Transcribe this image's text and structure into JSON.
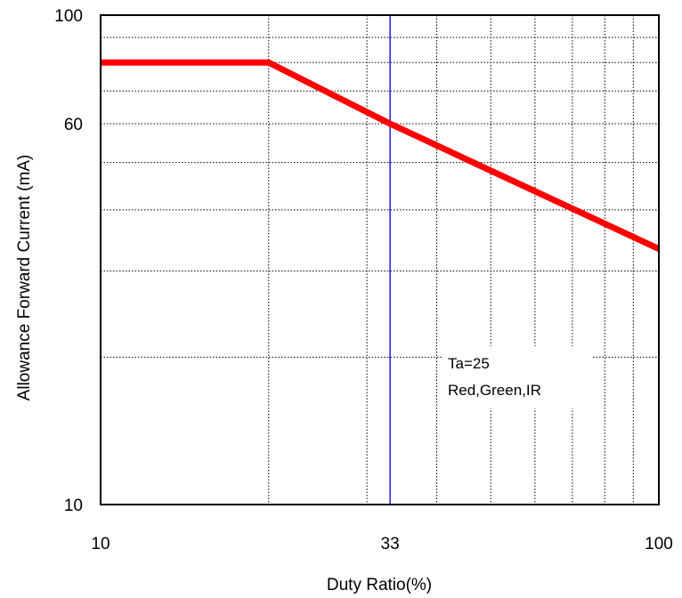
{
  "chart_data": {
    "type": "line",
    "xlabel": "Duty Ratio(%)",
    "ylabel": "Allowance Forward Current (mA)",
    "x_scale": "log",
    "y_scale": "log",
    "xlim": [
      10,
      100
    ],
    "ylim": [
      10,
      100
    ],
    "x_ticks": [
      10,
      33,
      100
    ],
    "y_ticks": [
      10,
      60,
      100
    ],
    "x_tick_labels": [
      "10",
      "33",
      "100"
    ],
    "y_tick_labels": [
      "10",
      "60",
      "100"
    ],
    "grid": true,
    "series": [
      {
        "color": "#ff0000",
        "x": [
          10,
          20,
          33,
          100
        ],
        "y": [
          80,
          80,
          60,
          33.3
        ]
      }
    ],
    "reference_lines": [
      {
        "axis": "x",
        "value": 33,
        "color": "#2222cc"
      }
    ],
    "annotations": [
      "Ta=25",
      "Red,Green,IR"
    ]
  }
}
